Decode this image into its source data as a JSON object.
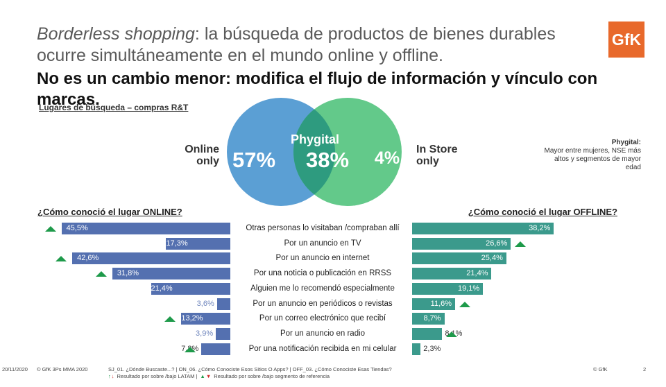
{
  "title_italic": "Borderless shopping",
  "title_rest": ": la búsqueda de productos de bienes durables ocurre simultáneamente en el mundo online y offline.",
  "title_bold": "No es un cambio menor: modifica el flujo de información y vínculo con marcas.",
  "logo": "GfK",
  "subheading": "Lugares de búsqueda – compras R&T",
  "venn": {
    "left_label": "Online only",
    "left_value": "57%",
    "center_label": "Phygital",
    "center_value": "38%",
    "right_value": "4%",
    "right_label": "In Store only",
    "left_color": "#5b9fd4",
    "right_color": "#63c98a",
    "overlap_color": "#2e9b7f"
  },
  "note": {
    "title": "Phygital:",
    "text": "Mayor entre mujeres, NSE más altos y segmentos de mayor edad"
  },
  "online_heading": "¿Cómo conoció el lugar ONLINE?",
  "offline_heading": "¿Cómo conoció el lugar OFFLINE?",
  "chart_data": {
    "type": "bar",
    "categories": [
      "Otras personas lo visitaban /compraban allí",
      "Por un anuncio en TV",
      "Por un anuncio en internet",
      "Por una noticia o publicación en RRSS",
      "Alguien me lo recomendó especialmente",
      "Por un anuncio en periódicos o revistas",
      "Por un correo electrónico que recibí",
      "Por un anuncio en radio",
      "Por una notificación recibida en mi celular"
    ],
    "series": [
      {
        "name": "¿Cómo conoció el lugar ONLINE?",
        "values": [
          45.5,
          17.3,
          42.6,
          31.8,
          21.4,
          3.6,
          13.2,
          3.9,
          7.8
        ],
        "labels": [
          "45,5%",
          "17,3%",
          "42,6%",
          "31,8%",
          "21,4%",
          "3,6%",
          "13,2%",
          "3,9%",
          "7,8%"
        ],
        "above_reference": [
          true,
          false,
          true,
          true,
          false,
          false,
          true,
          false,
          true
        ],
        "color": "#5470b0"
      },
      {
        "name": "¿Cómo conoció el lugar OFFLINE?",
        "values": [
          38.2,
          26.6,
          25.4,
          21.4,
          19.1,
          11.6,
          8.7,
          8.1,
          2.3
        ],
        "labels": [
          "38,2%",
          "26,6%",
          "25,4%",
          "21,4%",
          "19,1%",
          "11,6%",
          "8,7%",
          "8,1%",
          "2,3%"
        ],
        "above_reference": [
          false,
          true,
          false,
          false,
          false,
          true,
          false,
          true,
          false
        ],
        "color": "#3b9a8c"
      }
    ]
  },
  "footer": {
    "date": "20/11/2020",
    "source": "© GfK 3Ps MMA 2020",
    "questions": "SJ_01. ¿Dónde Buscaste...? | ON_06. ¿Cómo Conociste Esos Sitios O Apps? | OFF_03. ¿Cómo Conociste Esas Tiendas?",
    "legend_latam": "Resultado por sobre /bajo LATAM |",
    "legend_segment": "Resultado por sobre /bajo segmento de referencia",
    "copyright": "© GfK",
    "page": "2"
  }
}
